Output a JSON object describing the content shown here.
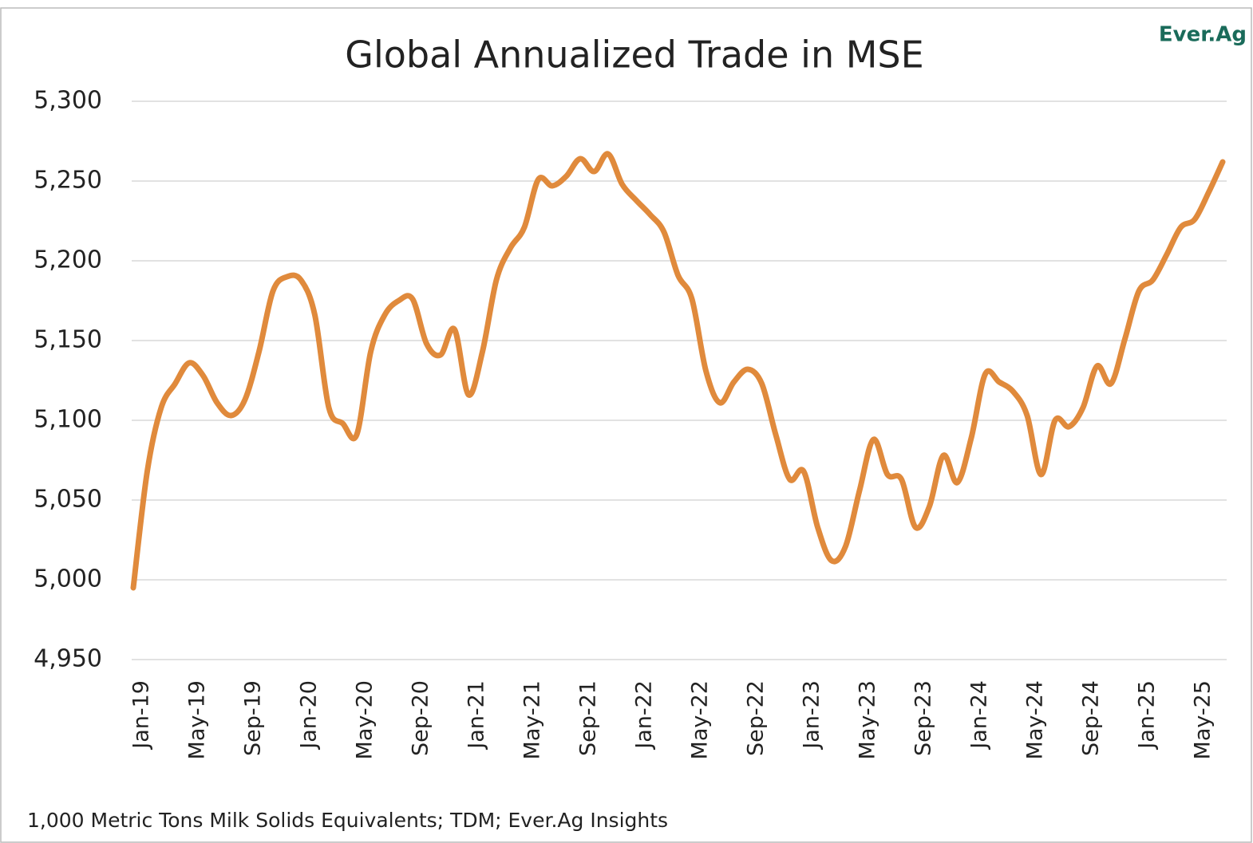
{
  "chart_data": {
    "type": "line",
    "title": "Global Annualized Trade in MSE",
    "logo": "Ever.Ag",
    "footnote": "1,000 Metric Tons Milk Solids Equivalents; TDM; Ever.Ag Insights",
    "categories": [
      "Jan-19",
      null,
      null,
      null,
      "May-19",
      null,
      null,
      null,
      "Sep-19",
      null,
      null,
      null,
      "Jan-20",
      null,
      null,
      null,
      "May-20",
      null,
      null,
      null,
      "Sep-20",
      null,
      null,
      null,
      "Jan-21",
      null,
      null,
      null,
      "May-21",
      null,
      null,
      null,
      "Sep-21",
      null,
      null,
      null,
      "Jan-22",
      null,
      null,
      null,
      "May-22",
      null,
      null,
      null,
      "Sep-22",
      null,
      null,
      null,
      "Jan-23",
      null,
      null,
      null,
      "May-23",
      null,
      null,
      null,
      "Sep-23",
      null,
      null,
      null,
      "Jan-24",
      null,
      null,
      null,
      "May-24",
      null,
      null,
      null,
      "Sep-24",
      null,
      null,
      null,
      "Jan-25",
      null,
      null,
      null,
      "May-25",
      null,
      null
    ],
    "series": [
      {
        "name": "Global Annualized Trade in MSE",
        "color": "#e08a3c",
        "values": [
          4995,
          5068,
          5108,
          5123,
          5136,
          5128,
          5111,
          5103,
          5113,
          5143,
          5181,
          5190,
          5188,
          5166,
          5108,
          5098,
          5091,
          5143,
          5166,
          5175,
          5176,
          5148,
          5141,
          5157,
          5116,
          5143,
          5188,
          5208,
          5221,
          5251,
          5247,
          5253,
          5264,
          5256,
          5267,
          5248,
          5238,
          5229,
          5218,
          5191,
          5176,
          5131,
          5111,
          5124,
          5132,
          5123,
          5091,
          5063,
          5068,
          5033,
          5012,
          5021,
          5056,
          5088,
          5066,
          5063,
          5033,
          5046,
          5078,
          5061,
          5089,
          5129,
          5124,
          5118,
          5103,
          5066,
          5100,
          5096,
          5108,
          5134,
          5123,
          5151,
          5181,
          5188,
          5204,
          5221,
          5226,
          5243,
          5262
        ]
      }
    ],
    "ylim": [
      4950,
      5300
    ],
    "yticks": [
      {
        "value": 4950,
        "label": "4,950"
      },
      {
        "value": 5000,
        "label": "5,000"
      },
      {
        "value": 5050,
        "label": "5,050"
      },
      {
        "value": 5100,
        "label": "5,100"
      },
      {
        "value": 5150,
        "label": "5,150"
      },
      {
        "value": 5200,
        "label": "5,200"
      },
      {
        "value": 5250,
        "label": "5,250"
      },
      {
        "value": 5300,
        "label": "5,300"
      }
    ],
    "grid": true
  }
}
